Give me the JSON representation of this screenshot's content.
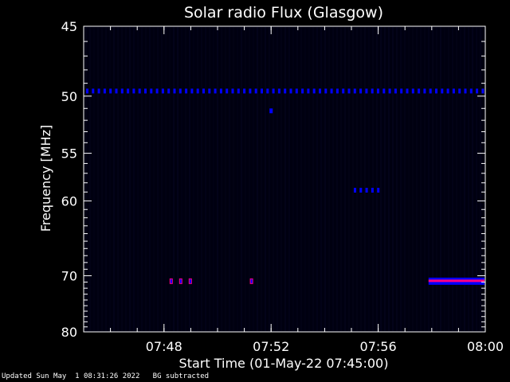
{
  "footer": {
    "updated": "Updated Sun May  1 08:31:26 2022",
    "bg_note": "BG subtracted"
  },
  "chart_data": {
    "type": "heatmap",
    "title": "Solar radio Flux (Glasgow)",
    "xlabel": "Start Time (01-May-22 07:45:00)",
    "ylabel": "Frequency [MHz]",
    "x_unit": "time",
    "xlim": [
      "07:45",
      "08:00"
    ],
    "ylim": [
      45,
      80
    ],
    "y_scale": "reciprocal",
    "x_ticks": [
      "07:48",
      "07:52",
      "07:56",
      "08:00"
    ],
    "y_ticks": [
      45,
      50,
      55,
      60,
      70,
      80
    ],
    "colors": {
      "background": "#000010",
      "weak": "#0000ff",
      "strong": "#ff0080"
    },
    "features": [
      {
        "name": "",
        "kind": "dashed-band",
        "freq_mhz": 49.6,
        "time_start": "07:45",
        "time_end": "08:00",
        "intensity": "weak"
      },
      {
        "name": "",
        "kind": "dot",
        "freq_mhz": 51.2,
        "time_start": "07:52",
        "time_end": "07:52",
        "intensity": "weak"
      },
      {
        "name": "",
        "kind": "dashed-band",
        "freq_mhz": 58.8,
        "time_start": "07:55",
        "time_end": "07:56",
        "intensity": "weak"
      },
      {
        "name": "",
        "kind": "burst-dots",
        "freq_mhz": 70.8,
        "time_start": "07:48",
        "time_end": "07:49",
        "intensity": "strong"
      },
      {
        "name": "",
        "kind": "burst-dots",
        "freq_mhz": 70.8,
        "time_start": "07:51",
        "time_end": "07:51",
        "intensity": "strong"
      },
      {
        "name": "",
        "kind": "band",
        "freq_mhz": 70.8,
        "time_start": "07:58",
        "time_end": "08:00",
        "intensity": "strong"
      }
    ]
  }
}
